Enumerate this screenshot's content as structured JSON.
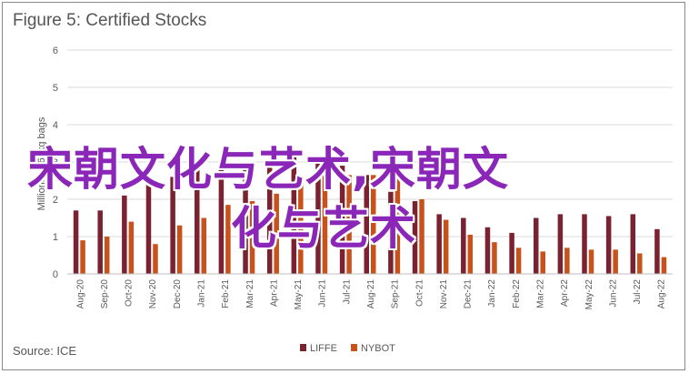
{
  "page": {
    "source": "Source: ICE"
  },
  "watermark": {
    "line1": "宋朝文化与艺术,宋朝文",
    "line2": "化与艺术",
    "color": "#8a27b8"
  },
  "chart_data": {
    "type": "bar",
    "title": "Figure 5: Certified Stocks",
    "ylabel": "Millions of 60kg bags",
    "xlabel": "",
    "ylim": [
      0,
      6
    ],
    "yticks": [
      0,
      1,
      2,
      3,
      4,
      5,
      6
    ],
    "grid": true,
    "legend_position": "bottom-center",
    "categories": [
      "Aug-20",
      "Sep-20",
      "Oct-20",
      "Nov-20",
      "Dec-20",
      "Jan-21",
      "Feb-21",
      "Mar-21",
      "Apr-21",
      "May-21",
      "Jun-21",
      "Jul-21",
      "Aug-21",
      "Sep-21",
      "Oct-21",
      "Nov-21",
      "Dec-21",
      "Jan-22",
      "Feb-22",
      "Mar-22",
      "Apr-22",
      "May-22",
      "Jun-22",
      "Jul-22",
      "Aug-22"
    ],
    "series": [
      {
        "name": "LIFFE",
        "color": "#7a2230",
        "values": [
          1.7,
          1.7,
          2.1,
          2.5,
          2.6,
          2.8,
          2.9,
          3.0,
          3.05,
          3.35,
          3.05,
          2.9,
          2.65,
          2.2,
          1.95,
          1.6,
          1.5,
          1.25,
          1.1,
          1.5,
          1.6,
          1.6,
          1.55,
          1.6,
          1.2
        ]
      },
      {
        "name": "NYBOT",
        "color": "#c8521c",
        "values": [
          0.9,
          1.0,
          1.4,
          0.8,
          1.3,
          1.5,
          1.85,
          1.95,
          2.15,
          2.45,
          2.65,
          2.65,
          2.65,
          2.55,
          2.0,
          1.45,
          1.05,
          0.85,
          0.7,
          0.6,
          0.7,
          0.65,
          0.65,
          0.55,
          0.45
        ]
      }
    ]
  }
}
